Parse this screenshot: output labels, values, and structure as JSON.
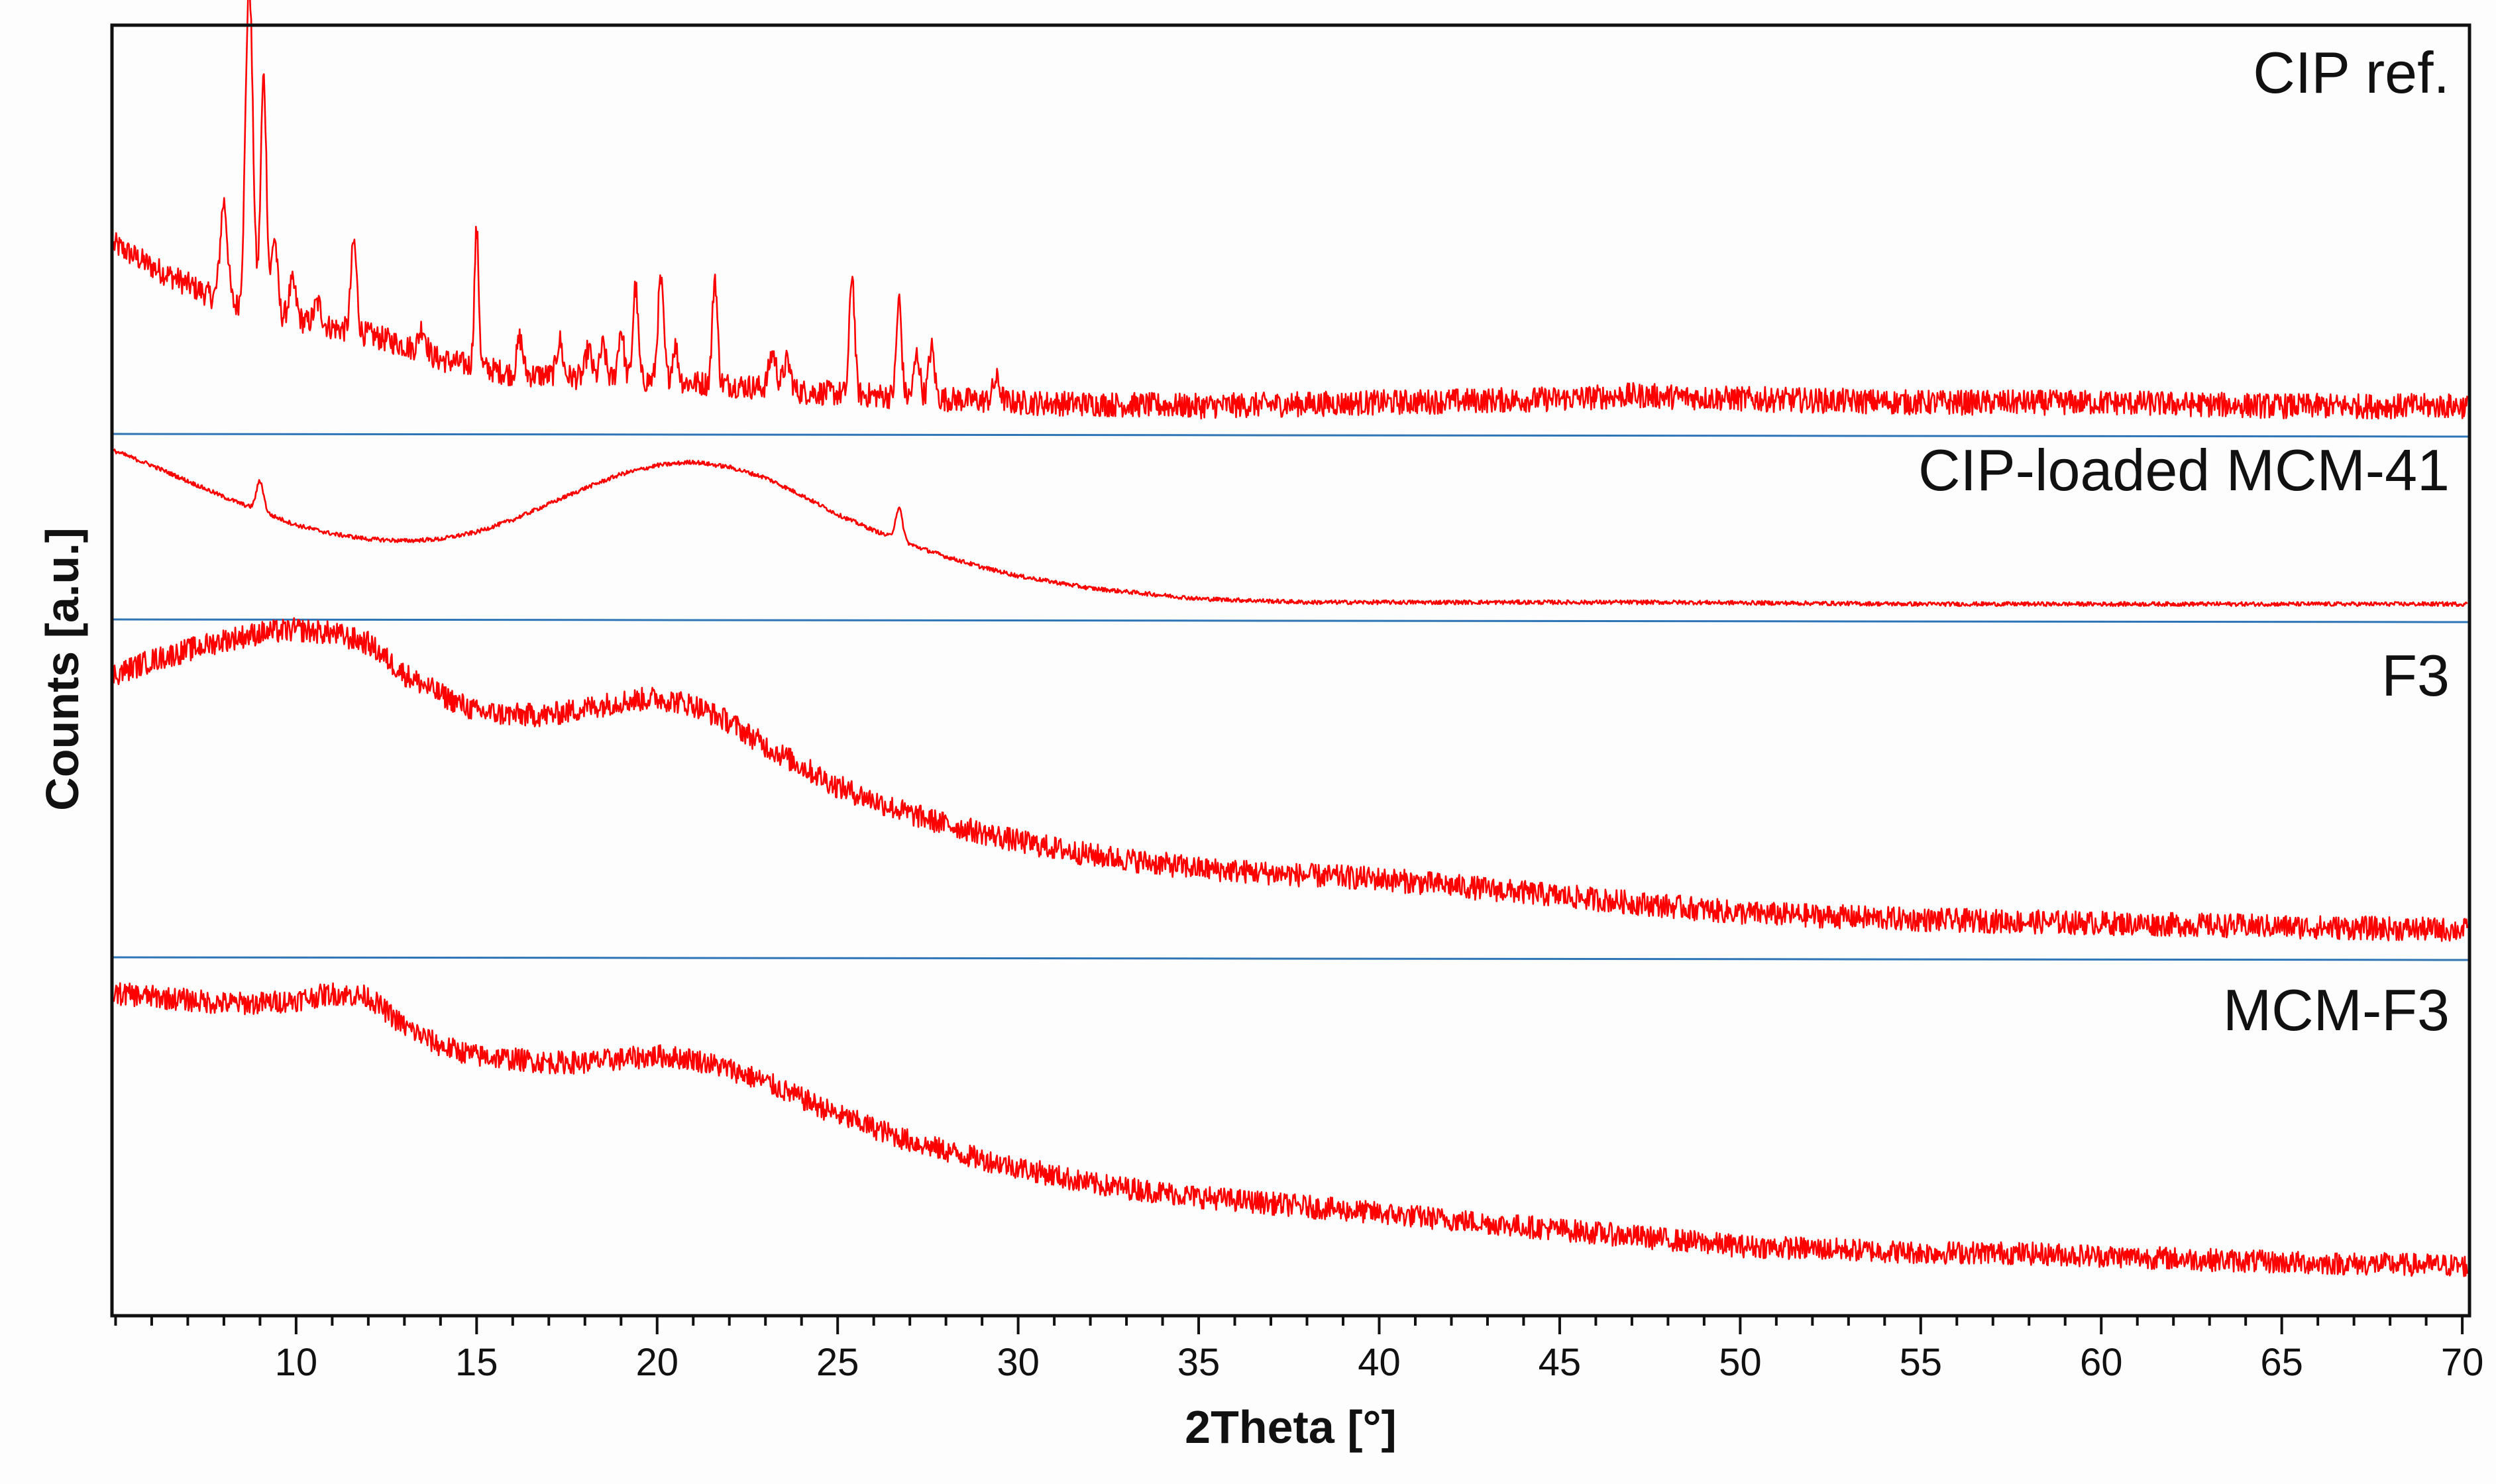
{
  "chart_data": {
    "type": "line",
    "title": "",
    "xlabel": "2Theta [°]",
    "ylabel": "Counts [a.u.]",
    "xlim": [
      4.9,
      70.2
    ],
    "xticks": [
      10,
      15,
      20,
      25,
      30,
      35,
      40,
      45,
      50,
      55,
      60,
      65,
      70
    ],
    "x_minor_step": 1,
    "y_units": "arbitrary (offset per trace, normalized 0-1 within each panel)",
    "colors": {
      "trace": "#ff0000",
      "separator": "#2e75b6",
      "axis": "#111111",
      "background": "#fdfdfd"
    },
    "series": [
      {
        "name": "CIP ref.",
        "noise": 0.035,
        "baseline": [
          [
            5,
            0.5
          ],
          [
            6,
            0.44
          ],
          [
            7,
            0.39
          ],
          [
            8,
            0.34
          ],
          [
            9,
            0.31
          ],
          [
            10,
            0.29
          ],
          [
            11,
            0.27
          ],
          [
            12,
            0.25
          ],
          [
            13,
            0.22
          ],
          [
            14,
            0.18
          ],
          [
            15,
            0.16
          ],
          [
            16,
            0.14
          ],
          [
            18,
            0.13
          ],
          [
            20,
            0.12
          ],
          [
            22,
            0.11
          ],
          [
            24,
            0.09
          ],
          [
            26,
            0.08
          ],
          [
            28,
            0.07
          ],
          [
            30,
            0.06
          ],
          [
            35,
            0.05
          ],
          [
            40,
            0.06
          ],
          [
            45,
            0.07
          ],
          [
            47,
            0.08
          ],
          [
            50,
            0.07
          ],
          [
            55,
            0.06
          ],
          [
            60,
            0.06
          ],
          [
            65,
            0.05
          ],
          [
            70,
            0.05
          ]
        ],
        "peaks": [
          [
            8.0,
            0.28,
            0.1
          ],
          [
            8.7,
            0.92,
            0.1
          ],
          [
            9.1,
            0.66,
            0.08
          ],
          [
            9.4,
            0.22,
            0.08
          ],
          [
            9.9,
            0.1,
            0.1
          ],
          [
            10.6,
            0.06,
            0.1
          ],
          [
            11.6,
            0.25,
            0.08
          ],
          [
            13.5,
            0.07,
            0.1
          ],
          [
            15.0,
            0.38,
            0.06
          ],
          [
            16.2,
            0.1,
            0.08
          ],
          [
            17.3,
            0.1,
            0.08
          ],
          [
            18.1,
            0.08,
            0.08
          ],
          [
            18.5,
            0.09,
            0.08
          ],
          [
            19.0,
            0.14,
            0.08
          ],
          [
            19.4,
            0.26,
            0.07
          ],
          [
            20.1,
            0.28,
            0.08
          ],
          [
            20.5,
            0.1,
            0.08
          ],
          [
            21.6,
            0.3,
            0.07
          ],
          [
            23.2,
            0.1,
            0.1
          ],
          [
            23.6,
            0.08,
            0.1
          ],
          [
            25.4,
            0.34,
            0.07
          ],
          [
            26.7,
            0.27,
            0.07
          ],
          [
            27.2,
            0.12,
            0.08
          ],
          [
            27.6,
            0.14,
            0.08
          ],
          [
            29.4,
            0.06,
            0.1
          ]
        ]
      },
      {
        "name": "CIP-loaded MCM-41",
        "noise": 0.012,
        "baseline": [
          [
            5,
            0.92
          ],
          [
            6,
            0.84
          ],
          [
            7,
            0.75
          ],
          [
            8,
            0.66
          ],
          [
            9,
            0.58
          ],
          [
            10,
            0.5
          ],
          [
            11,
            0.45
          ],
          [
            12,
            0.42
          ],
          [
            13,
            0.41
          ],
          [
            14,
            0.42
          ],
          [
            15,
            0.46
          ],
          [
            16,
            0.53
          ],
          [
            17,
            0.62
          ],
          [
            18,
            0.71
          ],
          [
            19,
            0.79
          ],
          [
            20,
            0.84
          ],
          [
            21,
            0.86
          ],
          [
            22,
            0.83
          ],
          [
            23,
            0.77
          ],
          [
            24,
            0.67
          ],
          [
            25,
            0.56
          ],
          [
            26,
            0.47
          ],
          [
            27,
            0.39
          ],
          [
            28,
            0.32
          ],
          [
            29,
            0.26
          ],
          [
            30,
            0.21
          ],
          [
            32,
            0.14
          ],
          [
            35,
            0.08
          ],
          [
            38,
            0.06
          ],
          [
            42,
            0.06
          ],
          [
            48,
            0.06
          ],
          [
            55,
            0.05
          ],
          [
            62,
            0.05
          ],
          [
            70,
            0.05
          ]
        ],
        "peaks": [
          [
            9.0,
            0.17,
            0.1
          ],
          [
            26.7,
            0.18,
            0.1
          ]
        ]
      },
      {
        "name": "F3",
        "noise": 0.035,
        "baseline": [
          [
            5,
            0.83
          ],
          [
            6,
            0.87
          ],
          [
            7,
            0.9
          ],
          [
            8,
            0.93
          ],
          [
            9,
            0.95
          ],
          [
            10,
            0.96
          ],
          [
            11,
            0.95
          ],
          [
            12,
            0.92
          ],
          [
            13,
            0.83
          ],
          [
            14,
            0.77
          ],
          [
            15,
            0.72
          ],
          [
            16,
            0.71
          ],
          [
            17,
            0.71
          ],
          [
            18,
            0.73
          ],
          [
            19,
            0.75
          ],
          [
            20,
            0.76
          ],
          [
            21,
            0.74
          ],
          [
            22,
            0.69
          ],
          [
            23,
            0.62
          ],
          [
            24,
            0.56
          ],
          [
            25,
            0.5
          ],
          [
            26,
            0.46
          ],
          [
            27,
            0.42
          ],
          [
            28,
            0.39
          ],
          [
            30,
            0.34
          ],
          [
            32,
            0.3
          ],
          [
            35,
            0.26
          ],
          [
            38,
            0.24
          ],
          [
            40,
            0.23
          ],
          [
            43,
            0.2
          ],
          [
            45,
            0.18
          ],
          [
            48,
            0.15
          ],
          [
            50,
            0.13
          ],
          [
            55,
            0.11
          ],
          [
            60,
            0.1
          ],
          [
            65,
            0.09
          ],
          [
            70,
            0.08
          ]
        ],
        "peaks": []
      },
      {
        "name": "MCM-F3",
        "noise": 0.035,
        "baseline": [
          [
            5,
            0.93
          ],
          [
            6,
            0.92
          ],
          [
            7,
            0.91
          ],
          [
            8,
            0.9
          ],
          [
            9,
            0.9
          ],
          [
            10,
            0.91
          ],
          [
            11,
            0.93
          ],
          [
            12,
            0.92
          ],
          [
            13,
            0.83
          ],
          [
            14,
            0.77
          ],
          [
            15,
            0.74
          ],
          [
            16,
            0.73
          ],
          [
            17,
            0.72
          ],
          [
            18,
            0.72
          ],
          [
            19,
            0.73
          ],
          [
            20,
            0.74
          ],
          [
            21,
            0.73
          ],
          [
            22,
            0.7
          ],
          [
            23,
            0.66
          ],
          [
            24,
            0.61
          ],
          [
            25,
            0.56
          ],
          [
            26,
            0.52
          ],
          [
            27,
            0.48
          ],
          [
            28,
            0.45
          ],
          [
            30,
            0.4
          ],
          [
            32,
            0.35
          ],
          [
            35,
            0.31
          ],
          [
            38,
            0.28
          ],
          [
            40,
            0.26
          ],
          [
            43,
            0.23
          ],
          [
            45,
            0.21
          ],
          [
            48,
            0.18
          ],
          [
            50,
            0.16
          ],
          [
            55,
            0.14
          ],
          [
            57,
            0.14
          ],
          [
            60,
            0.13
          ],
          [
            65,
            0.11
          ],
          [
            70,
            0.1
          ]
        ],
        "peaks": []
      }
    ]
  }
}
